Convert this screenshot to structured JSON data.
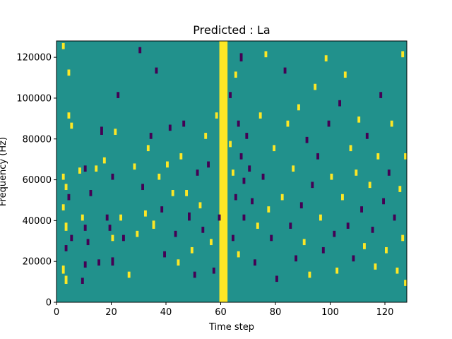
{
  "chart_data": {
    "type": "heatmap",
    "title": "Predicted : La",
    "xlabel": "Time step",
    "ylabel": "Frequency (Hz)",
    "xlim": [
      0,
      128
    ],
    "ylim": [
      0,
      128000
    ],
    "xticks": [
      0,
      20,
      40,
      60,
      80,
      100,
      120
    ],
    "yticks": [
      0,
      20000,
      40000,
      60000,
      80000,
      100000,
      120000
    ],
    "n_rows": 128,
    "colors": {
      "background": "#21918c",
      "high": "#fde725",
      "low": "#440154"
    },
    "dense_band": {
      "x_start": 59.5,
      "x_end": 62.5,
      "value": "high"
    },
    "cells": [
      [
        2,
        124000,
        3,
        "high"
      ],
      [
        4,
        111000,
        3,
        "high"
      ],
      [
        4,
        90000,
        3,
        "high"
      ],
      [
        5,
        85000,
        3,
        "high"
      ],
      [
        2,
        60000,
        3,
        "high"
      ],
      [
        3,
        55000,
        3,
        "high"
      ],
      [
        4,
        50000,
        3,
        "low"
      ],
      [
        2,
        45000,
        3,
        "high"
      ],
      [
        3,
        35000,
        4,
        "high"
      ],
      [
        5,
        30000,
        3,
        "low"
      ],
      [
        3,
        25000,
        3,
        "low"
      ],
      [
        2,
        14000,
        4,
        "high"
      ],
      [
        3,
        9000,
        4,
        "high"
      ],
      [
        8,
        63000,
        3,
        "high"
      ],
      [
        9,
        40000,
        3,
        "high"
      ],
      [
        10,
        35000,
        3,
        "low"
      ],
      [
        11,
        28000,
        3,
        "low"
      ],
      [
        10,
        17000,
        3,
        "low"
      ],
      [
        9,
        9000,
        3,
        "low"
      ],
      [
        10,
        64000,
        3,
        "low"
      ],
      [
        12,
        52000,
        3,
        "low"
      ],
      [
        14,
        64000,
        3,
        "high"
      ],
      [
        15,
        18000,
        3,
        "low"
      ],
      [
        16,
        82000,
        4,
        "low"
      ],
      [
        17,
        68000,
        3,
        "high"
      ],
      [
        18,
        40000,
        3,
        "low"
      ],
      [
        19,
        35000,
        3,
        "low"
      ],
      [
        20,
        60000,
        3,
        "low"
      ],
      [
        20,
        30000,
        3,
        "high"
      ],
      [
        20,
        18000,
        4,
        "low"
      ],
      [
        21,
        82000,
        3,
        "high"
      ],
      [
        22,
        100000,
        3,
        "low"
      ],
      [
        23,
        40000,
        3,
        "high"
      ],
      [
        24,
        30000,
        3,
        "low"
      ],
      [
        26,
        12000,
        3,
        "high"
      ],
      [
        28,
        65000,
        3,
        "high"
      ],
      [
        29,
        32000,
        3,
        "high"
      ],
      [
        30,
        122000,
        3,
        "low"
      ],
      [
        31,
        55000,
        3,
        "low"
      ],
      [
        32,
        42000,
        3,
        "high"
      ],
      [
        33,
        74000,
        3,
        "high"
      ],
      [
        34,
        80000,
        3,
        "low"
      ],
      [
        35,
        36000,
        4,
        "high"
      ],
      [
        36,
        112000,
        3,
        "low"
      ],
      [
        37,
        60000,
        3,
        "high"
      ],
      [
        38,
        44000,
        3,
        "low"
      ],
      [
        39,
        22000,
        3,
        "low"
      ],
      [
        40,
        66000,
        3,
        "high"
      ],
      [
        41,
        84000,
        3,
        "low"
      ],
      [
        42,
        52000,
        3,
        "high"
      ],
      [
        43,
        32000,
        3,
        "low"
      ],
      [
        44,
        18000,
        3,
        "high"
      ],
      [
        45,
        70000,
        3,
        "high"
      ],
      [
        46,
        86000,
        3,
        "low"
      ],
      [
        47,
        52000,
        3,
        "high"
      ],
      [
        48,
        40000,
        4,
        "low"
      ],
      [
        49,
        24000,
        3,
        "high"
      ],
      [
        50,
        12000,
        3,
        "low"
      ],
      [
        51,
        62000,
        3,
        "low"
      ],
      [
        52,
        46000,
        3,
        "high"
      ],
      [
        53,
        34000,
        3,
        "low"
      ],
      [
        54,
        80000,
        3,
        "high"
      ],
      [
        55,
        66000,
        3,
        "low"
      ],
      [
        56,
        28000,
        3,
        "high"
      ],
      [
        57,
        14000,
        3,
        "low"
      ],
      [
        58,
        90000,
        3,
        "high"
      ],
      [
        59,
        40000,
        3,
        "low"
      ],
      [
        63,
        100000,
        3,
        "low"
      ],
      [
        63,
        76000,
        3,
        "high"
      ],
      [
        64,
        62000,
        3,
        "high"
      ],
      [
        64,
        30000,
        3,
        "low"
      ],
      [
        65,
        110000,
        3,
        "high"
      ],
      [
        65,
        50000,
        3,
        "low"
      ],
      [
        66,
        86000,
        3,
        "low"
      ],
      [
        66,
        22000,
        3,
        "high"
      ],
      [
        67,
        118000,
        4,
        "low"
      ],
      [
        67,
        70000,
        3,
        "low"
      ],
      [
        68,
        40000,
        3,
        "low"
      ],
      [
        68,
        58000,
        3,
        "low"
      ],
      [
        69,
        80000,
        3,
        "low"
      ],
      [
        70,
        64000,
        3,
        "low"
      ],
      [
        71,
        48000,
        3,
        "low"
      ],
      [
        72,
        18000,
        3,
        "low"
      ],
      [
        73,
        36000,
        3,
        "high"
      ],
      [
        74,
        90000,
        3,
        "high"
      ],
      [
        75,
        60000,
        3,
        "low"
      ],
      [
        76,
        120000,
        3,
        "high"
      ],
      [
        77,
        44000,
        3,
        "high"
      ],
      [
        78,
        30000,
        3,
        "low"
      ],
      [
        79,
        74000,
        3,
        "high"
      ],
      [
        80,
        10000,
        3,
        "low"
      ],
      [
        82,
        50000,
        3,
        "high"
      ],
      [
        83,
        112000,
        3,
        "low"
      ],
      [
        84,
        86000,
        3,
        "high"
      ],
      [
        85,
        36000,
        3,
        "low"
      ],
      [
        86,
        64000,
        3,
        "high"
      ],
      [
        87,
        20000,
        3,
        "low"
      ],
      [
        88,
        94000,
        3,
        "high"
      ],
      [
        89,
        46000,
        3,
        "low"
      ],
      [
        90,
        28000,
        3,
        "high"
      ],
      [
        91,
        78000,
        3,
        "low"
      ],
      [
        92,
        12000,
        3,
        "high"
      ],
      [
        93,
        56000,
        3,
        "low"
      ],
      [
        94,
        104000,
        3,
        "high"
      ],
      [
        95,
        70000,
        3,
        "low"
      ],
      [
        96,
        40000,
        3,
        "high"
      ],
      [
        97,
        24000,
        3,
        "low"
      ],
      [
        98,
        118000,
        3,
        "high"
      ],
      [
        99,
        86000,
        3,
        "low"
      ],
      [
        100,
        60000,
        3,
        "high"
      ],
      [
        101,
        32000,
        3,
        "low"
      ],
      [
        102,
        14000,
        3,
        "high"
      ],
      [
        103,
        96000,
        3,
        "low"
      ],
      [
        104,
        50000,
        3,
        "high"
      ],
      [
        105,
        110000,
        3,
        "high"
      ],
      [
        106,
        36000,
        3,
        "low"
      ],
      [
        107,
        74000,
        3,
        "high"
      ],
      [
        108,
        20000,
        3,
        "low"
      ],
      [
        109,
        62000,
        3,
        "high"
      ],
      [
        110,
        88000,
        3,
        "high"
      ],
      [
        111,
        44000,
        3,
        "low"
      ],
      [
        112,
        26000,
        3,
        "high"
      ],
      [
        113,
        80000,
        3,
        "low"
      ],
      [
        114,
        56000,
        3,
        "high"
      ],
      [
        115,
        34000,
        3,
        "low"
      ],
      [
        116,
        16000,
        3,
        "high"
      ],
      [
        117,
        70000,
        3,
        "high"
      ],
      [
        118,
        100000,
        3,
        "low"
      ],
      [
        119,
        48000,
        3,
        "low"
      ],
      [
        120,
        24000,
        3,
        "high"
      ],
      [
        121,
        62000,
        3,
        "low"
      ],
      [
        122,
        86000,
        3,
        "high"
      ],
      [
        123,
        40000,
        3,
        "low"
      ],
      [
        124,
        14000,
        3,
        "high"
      ],
      [
        125,
        54000,
        3,
        "high"
      ],
      [
        126,
        30000,
        3,
        "high"
      ],
      [
        126,
        120000,
        3,
        "high"
      ],
      [
        127,
        70000,
        3,
        "high"
      ],
      [
        127,
        8000,
        3,
        "high"
      ]
    ]
  }
}
